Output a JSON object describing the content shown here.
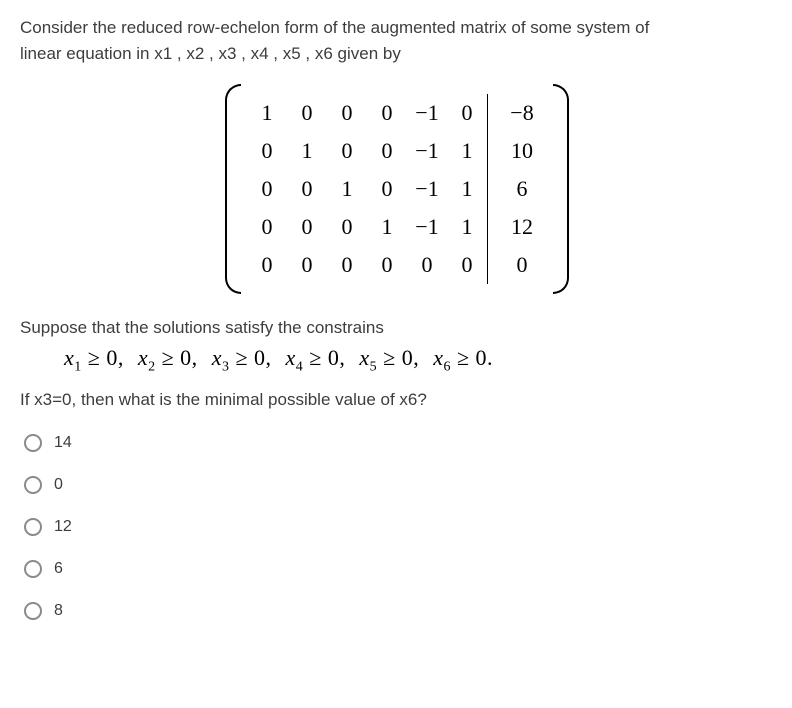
{
  "prompt": {
    "line1": "Consider the reduced row-echelon form of the augmented matrix of some system of",
    "line2": "linear equation in x1 , x2 , x3 , x4 , x5 , x6 given by"
  },
  "matrix": {
    "rows": [
      [
        "1",
        "0",
        "0",
        "0",
        "−1",
        "0",
        "−8"
      ],
      [
        "0",
        "1",
        "0",
        "0",
        "−1",
        "1",
        "10"
      ],
      [
        "0",
        "0",
        "1",
        "0",
        "−1",
        "1",
        "6"
      ],
      [
        "0",
        "0",
        "0",
        "1",
        "−1",
        "1",
        "12"
      ],
      [
        "0",
        "0",
        "0",
        "0",
        "0",
        "0",
        "0"
      ]
    ]
  },
  "mid_text": "Suppose that the solutions satisfy the constrains",
  "constraints": {
    "items": [
      "x₁ ≥ 0,",
      "x₂ ≥ 0,",
      "x₃ ≥ 0,",
      "x₄ ≥ 0,",
      "x₅ ≥ 0,",
      "x₆ ≥ 0."
    ]
  },
  "question": "If x3=0, then what is the minimal possible value of x6?",
  "choices": [
    "14",
    "0",
    "12",
    "6",
    "8"
  ],
  "colors": {
    "text": "#3d3d3d",
    "math": "#000000",
    "radio_border": "#8a8a8a",
    "background": "#ffffff"
  }
}
